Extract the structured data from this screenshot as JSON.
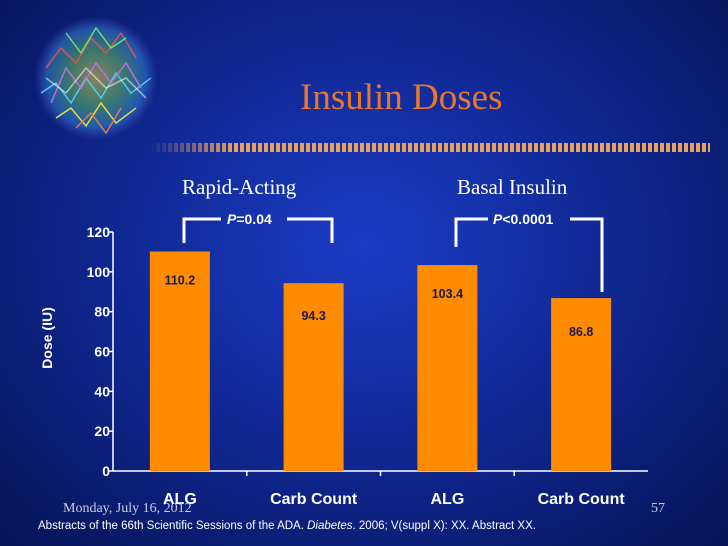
{
  "slide": {
    "title": "Insulin Doses",
    "date": "Monday, July 16, 2012",
    "page_number": "57",
    "footer": {
      "part1": "Abstracts of the 66th Scientific Sessions of the ADA. ",
      "journal": "Diabetes",
      "part2": ". 2006; V(suppl X): XX. Abstract  XX."
    },
    "colors": {
      "title": "#e8762d",
      "bar": "#ff8c00",
      "background": "#1230a8"
    }
  },
  "annotations": {
    "group1": "Rapid-Acting",
    "group2": "Basal Insulin",
    "p1_letter": "P",
    "p1_rest": "=0.04",
    "p2_letter": "P",
    "p2_rest": "<0.0001"
  },
  "chart_data": {
    "type": "bar",
    "categories": [
      "ALG",
      "Carb Count",
      "ALG",
      "Carb Count"
    ],
    "values": [
      110.2,
      94.3,
      103.4,
      86.8
    ],
    "value_labels": [
      "110.2",
      "94.3",
      "103.4",
      "86.8"
    ],
    "ylabel": "Dose (IU)",
    "ylim": [
      0,
      120
    ],
    "yticks": [
      0,
      20,
      40,
      60,
      80,
      100,
      120
    ],
    "grid": false,
    "legend": "none",
    "bar_color": "#ff8c00"
  }
}
